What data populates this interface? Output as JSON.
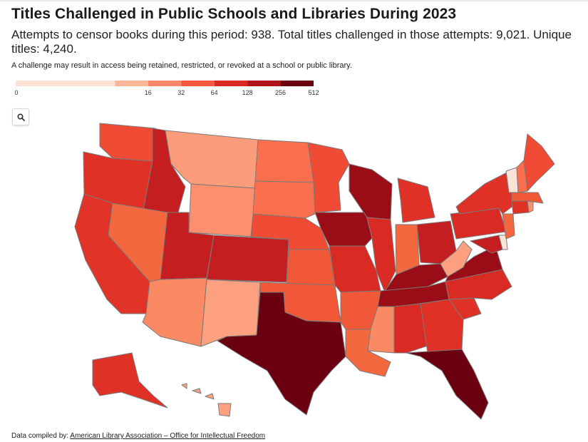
{
  "header": {
    "title": "Titles Challenged in Public Schools and Libraries During 2023",
    "subtitle": "Attempts to censor books during this period: 938. Total titles challenged in those attempts: 9,021. Unique titles: 4,240.",
    "note": "A challenge may result in access being retained, restricted, or revoked at a school or public library."
  },
  "legend": {
    "ticks": [
      "0",
      "16",
      "32",
      "64",
      "128",
      "256",
      "512"
    ],
    "tick_values": [
      0,
      16,
      32,
      64,
      128,
      256,
      512
    ],
    "colors": [
      "#fde3d6",
      "#fcb698",
      "#fb8768",
      "#f4583f",
      "#d92b23",
      "#b0141b",
      "#6b0011"
    ]
  },
  "controls": {
    "search_icon": "magnifier-icon"
  },
  "footer": {
    "label": "Data compiled by:",
    "source": "American Library Association – Office for Intellectual Freedom"
  },
  "map_data": {
    "type": "choropleth",
    "scale": "log2",
    "states": [
      {
        "id": "WA",
        "color": "#ef4b35"
      },
      {
        "id": "OR",
        "color": "#e03126"
      },
      {
        "id": "CA",
        "color": "#e13327"
      },
      {
        "id": "ID",
        "color": "#c51e20"
      },
      {
        "id": "NV",
        "color": "#f4683f"
      },
      {
        "id": "MT",
        "color": "#fc9c7b"
      },
      {
        "id": "WY",
        "color": "#fb8f6e"
      },
      {
        "id": "UT",
        "color": "#c51e20"
      },
      {
        "id": "AZ",
        "color": "#fa8a63"
      },
      {
        "id": "CO",
        "color": "#c51e20"
      },
      {
        "id": "NM",
        "color": "#fca07f"
      },
      {
        "id": "ND",
        "color": "#fa704f"
      },
      {
        "id": "SD",
        "color": "#fa704f"
      },
      {
        "id": "NE",
        "color": "#ef4b35"
      },
      {
        "id": "KS",
        "color": "#f05838"
      },
      {
        "id": "OK",
        "color": "#f05838"
      },
      {
        "id": "TX",
        "color": "#6b0011"
      },
      {
        "id": "MN",
        "color": "#ef4b35"
      },
      {
        "id": "IA",
        "color": "#9a0d17"
      },
      {
        "id": "MO",
        "color": "#d92b23"
      },
      {
        "id": "AR",
        "color": "#f05838"
      },
      {
        "id": "LA",
        "color": "#f4683f"
      },
      {
        "id": "WI",
        "color": "#9a0d17"
      },
      {
        "id": "IL",
        "color": "#d92b23"
      },
      {
        "id": "MI",
        "color": "#e03126"
      },
      {
        "id": "IN",
        "color": "#f4683f"
      },
      {
        "id": "OH",
        "color": "#c51e20"
      },
      {
        "id": "KY",
        "color": "#9a0d17"
      },
      {
        "id": "TN",
        "color": "#9a0d17"
      },
      {
        "id": "MS",
        "color": "#fa8a63"
      },
      {
        "id": "AL",
        "color": "#d92b23"
      },
      {
        "id": "GA",
        "color": "#e03126"
      },
      {
        "id": "FL",
        "color": "#6b0011"
      },
      {
        "id": "SC",
        "color": "#e03126"
      },
      {
        "id": "NC",
        "color": "#d92b23"
      },
      {
        "id": "VA",
        "color": "#9a0d17"
      },
      {
        "id": "WV",
        "color": "#fca07f"
      },
      {
        "id": "PA",
        "color": "#d92b23"
      },
      {
        "id": "NY",
        "color": "#e03126"
      },
      {
        "id": "MD",
        "color": "#c51e20"
      },
      {
        "id": "DE",
        "color": "#fde3d6"
      },
      {
        "id": "NJ",
        "color": "#f4683f"
      },
      {
        "id": "CT",
        "color": "#e03126"
      },
      {
        "id": "RI",
        "color": "#fb8f6e"
      },
      {
        "id": "MA",
        "color": "#f05838"
      },
      {
        "id": "VT",
        "color": "#fde3d6"
      },
      {
        "id": "NH",
        "color": "#fa704f"
      },
      {
        "id": "ME",
        "color": "#ef4b35"
      },
      {
        "id": "AK",
        "color": "#e03126"
      },
      {
        "id": "HI",
        "color": "#fca07f"
      }
    ]
  }
}
